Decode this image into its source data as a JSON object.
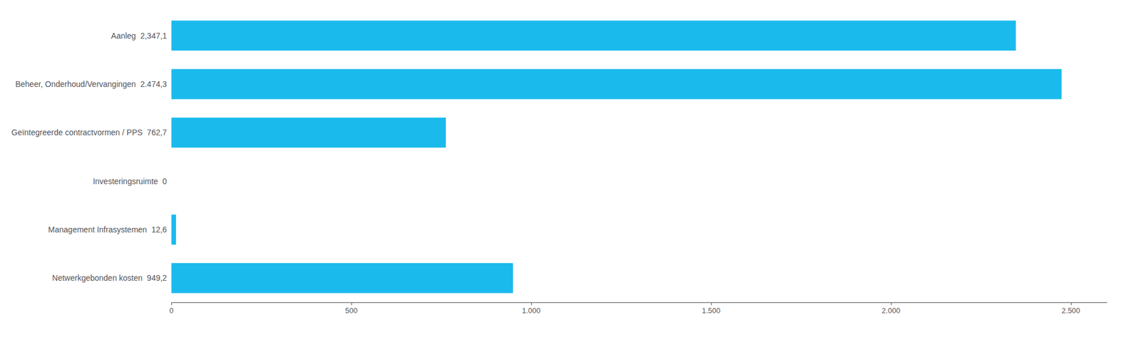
{
  "chart_data": {
    "type": "bar",
    "orientation": "horizontal",
    "categories": [
      "Netwerkgebonden kosten  949,2",
      "Management Infrasystemen  12,6",
      "Investeringsruimte  0",
      "Geïntegreerde contractvormen / PPS  762,7",
      "Beheer, Onderhoud/Vervangingen  2.474,3",
      "Aanleg  2,347,1"
    ],
    "values": [
      949.2,
      12.6,
      0.0,
      762.7,
      2474.3,
      2347.1
    ],
    "color": "#1ABAED",
    "xlim": [
      0,
      2600
    ],
    "xticks": [
      0,
      500,
      {
        "value": 1000,
        "label": "1.000"
      },
      {
        "value": 1500,
        "label": "1.500"
      },
      {
        "value": 2000,
        "label": "2.000"
      },
      {
        "value": 2500,
        "label": "2.500"
      }
    ],
    "grid": false
  }
}
